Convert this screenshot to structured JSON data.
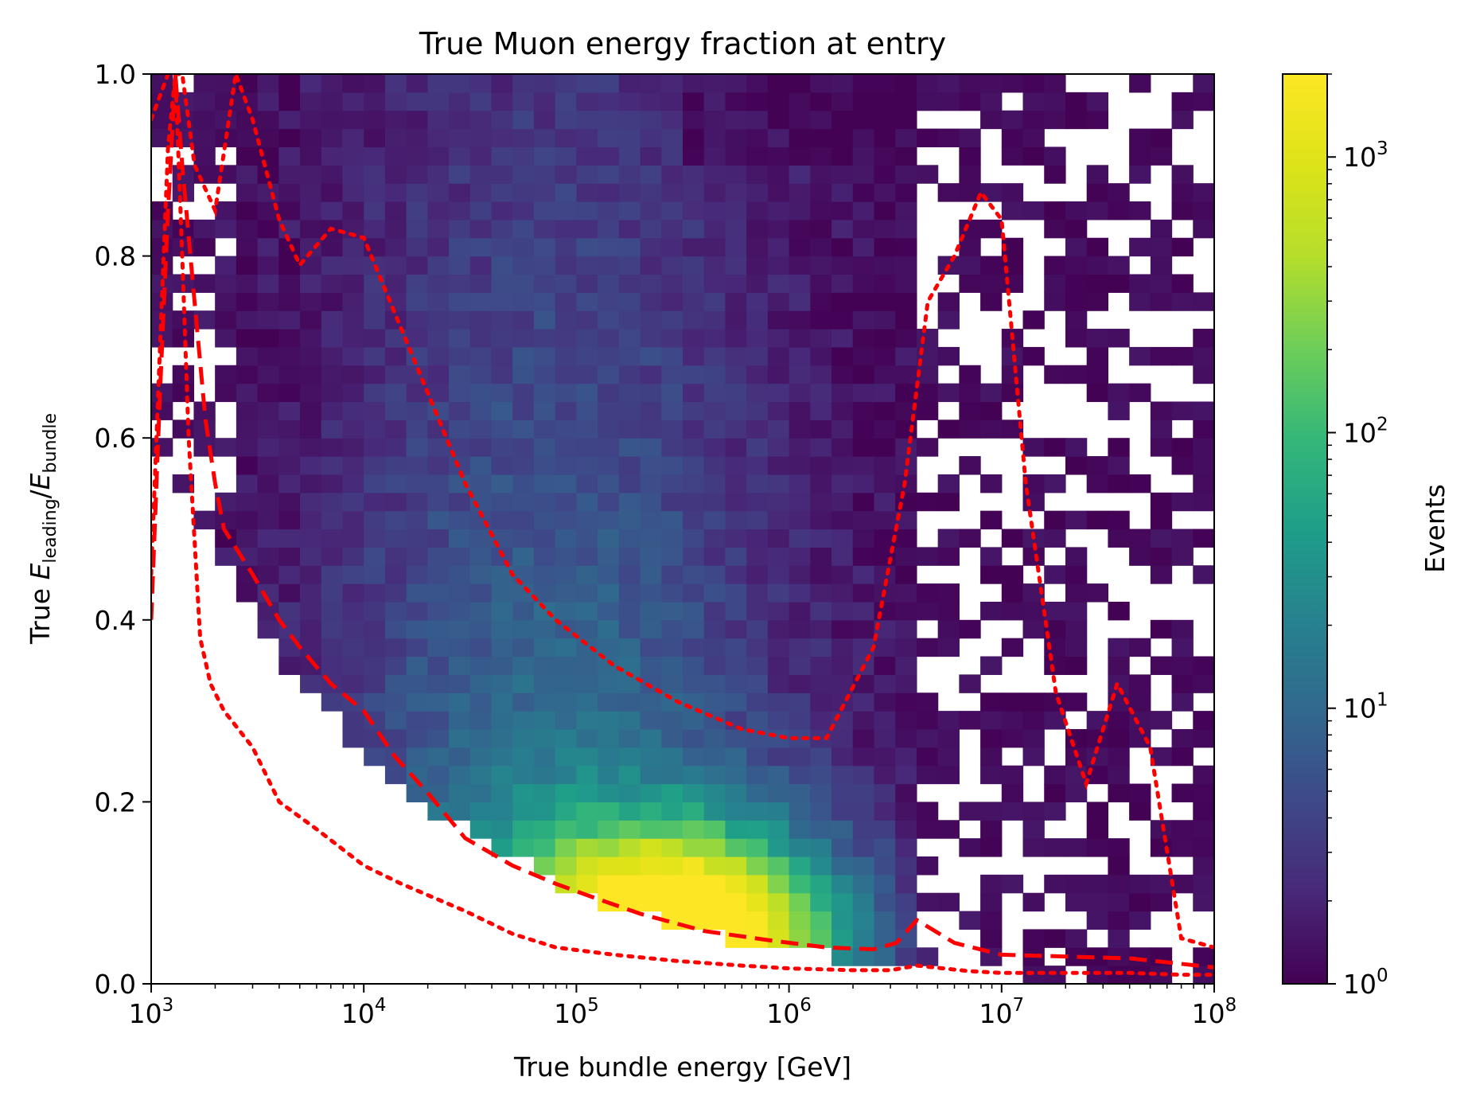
{
  "chart_data": {
    "type": "heatmap",
    "title": "True Muon energy fraction at entry",
    "xlabel": "True bundle energy [GeV]",
    "ylabel_prefix": "True ",
    "ylabel_num_symbol": "E",
    "ylabel_num_sub": "leading",
    "ylabel_sep": "/",
    "ylabel_den_symbol": "E",
    "ylabel_den_sub": "bundle",
    "xscale": "log",
    "xlim": [
      1000,
      100000000
    ],
    "ylim": [
      0.0,
      1.0
    ],
    "x_ticks": [
      {
        "base": "10",
        "exp": "3",
        "value": 1000
      },
      {
        "base": "10",
        "exp": "4",
        "value": 10000
      },
      {
        "base": "10",
        "exp": "5",
        "value": 100000
      },
      {
        "base": "10",
        "exp": "6",
        "value": 1000000
      },
      {
        "base": "10",
        "exp": "7",
        "value": 10000000
      },
      {
        "base": "10",
        "exp": "8",
        "value": 100000000
      }
    ],
    "y_ticks": [
      {
        "label": "0.0",
        "value": 0.0
      },
      {
        "label": "0.2",
        "value": 0.2
      },
      {
        "label": "0.4",
        "value": 0.4
      },
      {
        "label": "0.6",
        "value": 0.6
      },
      {
        "label": "0.8",
        "value": 0.8
      },
      {
        "label": "1.0",
        "value": 1.0
      }
    ],
    "colorbar": {
      "label": "Events",
      "scale": "log",
      "range": [
        1,
        2000
      ],
      "colormap": "viridis",
      "ticks": [
        {
          "base": "10",
          "exp": "0",
          "value": 1
        },
        {
          "base": "10",
          "exp": "1",
          "value": 10
        },
        {
          "base": "10",
          "exp": "2",
          "value": 100
        },
        {
          "base": "10",
          "exp": "3",
          "value": 1000
        }
      ]
    },
    "bins": {
      "x_bins": 50,
      "y_bins": 50
    },
    "density_model": {
      "peak_log10_energy": 5.5,
      "peak_fraction": 0.05,
      "peak_count": 2000,
      "sparse_above_log10_energy": 6.6
    },
    "lines": [
      {
        "style": "dashed",
        "color": "#ff0000",
        "x": [
          1000,
          1100,
          1200,
          1300,
          1400,
          1600,
          1800,
          2000,
          2200,
          3000,
          4000,
          5000,
          7000,
          10000,
          14000,
          20000,
          30000,
          50000,
          80000,
          120000,
          200000,
          400000,
          800000,
          1500000,
          2500000,
          3200000,
          4000000,
          6000000,
          10000000,
          20000000,
          40000000,
          70000000,
          100000000
        ],
        "y": [
          0.4,
          0.65,
          0.85,
          1.0,
          0.9,
          0.75,
          0.62,
          0.55,
          0.5,
          0.45,
          0.4,
          0.37,
          0.33,
          0.3,
          0.25,
          0.21,
          0.16,
          0.13,
          0.11,
          0.095,
          0.077,
          0.058,
          0.048,
          0.04,
          0.038,
          0.045,
          0.07,
          0.045,
          0.032,
          0.03,
          0.028,
          0.022,
          0.018
        ]
      },
      {
        "style": "dotted",
        "color": "#ff0000",
        "x": [
          1000,
          1100,
          1200,
          1300,
          1400,
          1500,
          1700,
          1900,
          2200,
          3000,
          4000,
          6000,
          10000,
          15000,
          30000,
          50000,
          80000,
          150000,
          300000,
          600000,
          1000000,
          2000000,
          3000000,
          4000000,
          7000000,
          10000000,
          20000000,
          40000000,
          70000000,
          100000000
        ],
        "y": [
          0.45,
          0.7,
          0.92,
          1.0,
          0.8,
          0.6,
          0.38,
          0.33,
          0.3,
          0.26,
          0.2,
          0.17,
          0.13,
          0.11,
          0.08,
          0.055,
          0.04,
          0.032,
          0.025,
          0.02,
          0.017,
          0.015,
          0.015,
          0.02,
          0.014,
          0.012,
          0.012,
          0.012,
          0.01,
          0.01
        ]
      },
      {
        "style": "dotted",
        "color": "#ff0000",
        "x": [
          1000,
          1200,
          1400,
          1600,
          2000,
          2500,
          3000,
          4000,
          5000,
          7000,
          10000,
          15000,
          30000,
          50000,
          80000,
          150000,
          300000,
          600000,
          1000000,
          1500000,
          2500000,
          3500000,
          4500000,
          6000000,
          8000000,
          10000000,
          13000000,
          18000000,
          25000000,
          35000000,
          50000000,
          70000000,
          100000000
        ],
        "y": [
          0.95,
          1.0,
          1.0,
          0.9,
          0.85,
          1.0,
          0.95,
          0.84,
          0.79,
          0.83,
          0.82,
          0.72,
          0.55,
          0.45,
          0.4,
          0.35,
          0.31,
          0.28,
          0.27,
          0.27,
          0.37,
          0.55,
          0.75,
          0.8,
          0.87,
          0.84,
          0.55,
          0.32,
          0.22,
          0.33,
          0.26,
          0.05,
          0.04
        ]
      }
    ]
  }
}
